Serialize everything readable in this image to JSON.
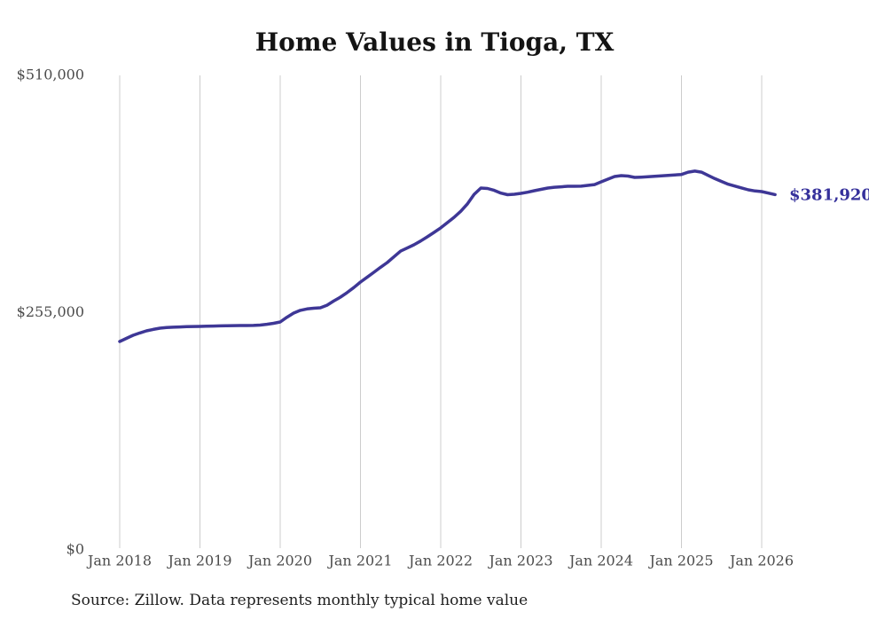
{
  "page": {
    "title": "Home Values in Tioga, TX",
    "source_note": "Source: Zillow. Data represents monthly typical home value"
  },
  "colors": {
    "line": "#3e3796",
    "end_label": "#35309b",
    "grid": "#cccccc",
    "axis_text": "#4c4c4c",
    "title_text": "#141414",
    "source_text": "#1f1f1f",
    "background": "#ffffff"
  },
  "chart_data": {
    "type": "line",
    "title": "Home Values in Tioga, TX",
    "xlabel": "",
    "ylabel": "",
    "grid": "vertical-only",
    "legend": "none",
    "ylim": [
      0,
      510000
    ],
    "y_ticks": [
      0,
      255000,
      510000
    ],
    "y_tick_labels": [
      "$0",
      "$255,000",
      "$510,000"
    ],
    "x_tick_labels": [
      "Jan 2018",
      "Jan 2019",
      "Jan 2020",
      "Jan 2021",
      "Jan 2022",
      "Jan 2023",
      "Jan 2024",
      "Jan 2025",
      "Jan 2026"
    ],
    "series": [
      {
        "name": "Monthly typical home value",
        "start_month": "2018-01",
        "end_month": "2026-03",
        "final_value": 381920,
        "final_value_label": "$381,920",
        "values": [
          224000,
          227400,
          230700,
          233200,
          235500,
          237000,
          238300,
          239000,
          239400,
          239700,
          239900,
          240100,
          240200,
          240400,
          240600,
          240800,
          241000,
          241100,
          241200,
          241200,
          241300,
          241700,
          242500,
          243600,
          245000,
          250000,
          254500,
          257500,
          259000,
          259800,
          260200,
          263000,
          267500,
          271700,
          276500,
          282000,
          287900,
          293000,
          298400,
          303700,
          308900,
          315000,
          321200,
          324500,
          327900,
          332000,
          336500,
          341300,
          346100,
          351800,
          357500,
          364000,
          372000,
          382200,
          388900,
          388500,
          386500,
          383500,
          381800,
          382300,
          383200,
          384500,
          386100,
          387500,
          388900,
          389800,
          390300,
          390800,
          390800,
          390900,
          391800,
          392700,
          395600,
          398500,
          401300,
          402300,
          401800,
          400400,
          400700,
          401000,
          401500,
          402000,
          402500,
          403000,
          403500,
          406000,
          407100,
          406000,
          402500,
          399000,
          396000,
          393000,
          391000,
          389000,
          387000,
          385800,
          385100,
          383500,
          381920
        ]
      }
    ]
  }
}
